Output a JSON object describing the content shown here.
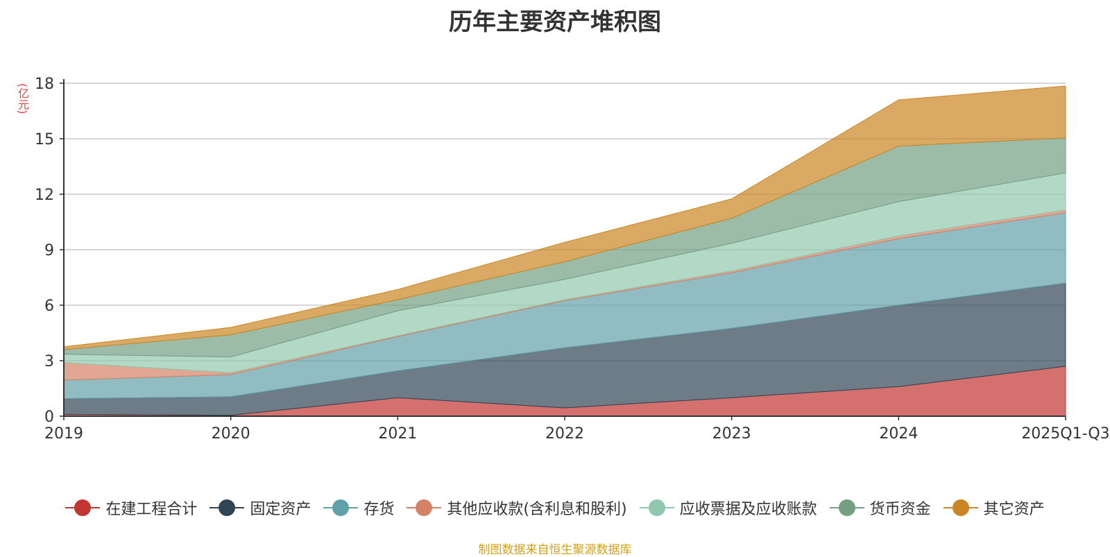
{
  "chart_data": {
    "type": "area",
    "stacked": true,
    "title": "历年主要资产堆积图",
    "ylabel": "(亿元)",
    "xlabel": "",
    "ylim": [
      0,
      18
    ],
    "yticks": [
      0,
      3,
      6,
      9,
      12,
      15,
      18
    ],
    "categories": [
      "2019",
      "2020",
      "2021",
      "2022",
      "2023",
      "2024",
      "2025Q1-Q3"
    ],
    "series": [
      {
        "name": "在建工程合计",
        "color": "#c23531",
        "values": [
          0.1,
          0.05,
          1.0,
          0.45,
          1.0,
          1.6,
          2.7
        ]
      },
      {
        "name": "固定资产",
        "color": "#2f4554",
        "values": [
          0.85,
          1.0,
          1.45,
          3.25,
          3.75,
          4.4,
          4.5
        ]
      },
      {
        "name": "存货",
        "color": "#61a0a8",
        "values": [
          1.0,
          1.2,
          1.85,
          2.55,
          3.0,
          3.6,
          3.8
        ]
      },
      {
        "name": "其他应收款(含利息和股利)",
        "color": "#d48265",
        "values": [
          0.95,
          0.1,
          0.05,
          0.05,
          0.1,
          0.15,
          0.15
        ]
      },
      {
        "name": "应收票据及应收账款",
        "color": "#91c7ae",
        "values": [
          0.45,
          0.85,
          1.35,
          1.1,
          1.5,
          1.85,
          2.0
        ]
      },
      {
        "name": "货币资金",
        "color": "#749f83",
        "values": [
          0.25,
          1.2,
          0.6,
          0.95,
          1.35,
          3.0,
          1.9
        ]
      },
      {
        "name": "其它资产",
        "color": "#ca8622",
        "values": [
          0.15,
          0.4,
          0.55,
          1.05,
          1.05,
          2.5,
          2.8
        ]
      }
    ],
    "legend_position": "bottom",
    "grid": true
  },
  "footer": {
    "source": "制图数据来自恒生聚源数据库"
  }
}
